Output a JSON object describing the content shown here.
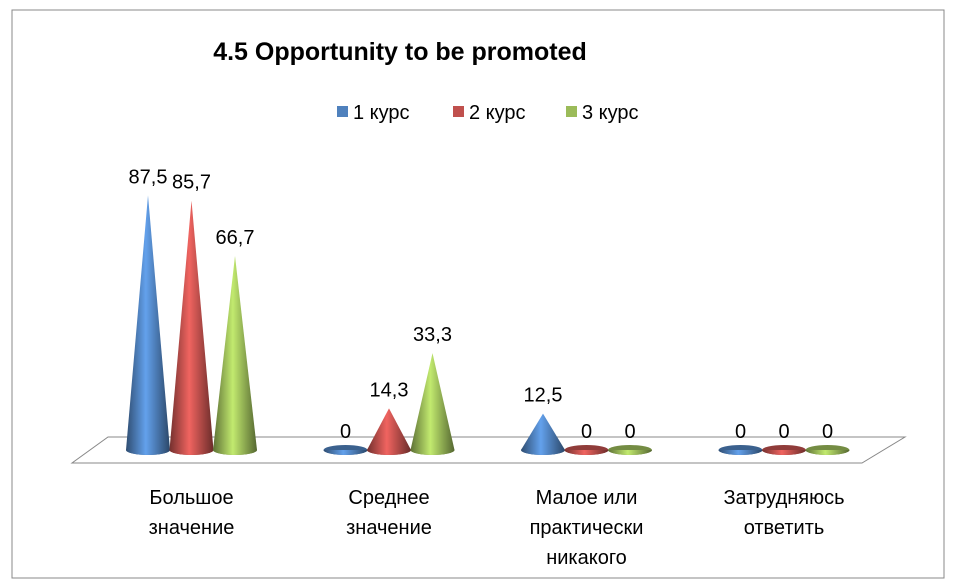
{
  "chart_data": {
    "type": "cone",
    "title": "4.5 Opportunity to be promoted",
    "categories": [
      "Большое\nзначение",
      "Среднее\nзначение",
      "Малое или\nпрактически\nникакого",
      "Затрудняюсь\nответить"
    ],
    "series": [
      {
        "name": "1 курс",
        "color": "#4f81bd",
        "values": [
          87.5,
          0,
          12.5,
          0
        ],
        "value_labels": [
          "87,5",
          "0",
          "12,5",
          "0"
        ]
      },
      {
        "name": "2 курс",
        "color": "#c0504d",
        "values": [
          85.7,
          14.3,
          0,
          0
        ],
        "value_labels": [
          "85,7",
          "14,3",
          "0",
          "0"
        ]
      },
      {
        "name": "3 курс",
        "color": "#9bbb59",
        "values": [
          66.7,
          33.3,
          0,
          0
        ],
        "value_labels": [
          "66,7",
          "33,3",
          "0",
          "0"
        ]
      }
    ],
    "legend": "top"
  }
}
